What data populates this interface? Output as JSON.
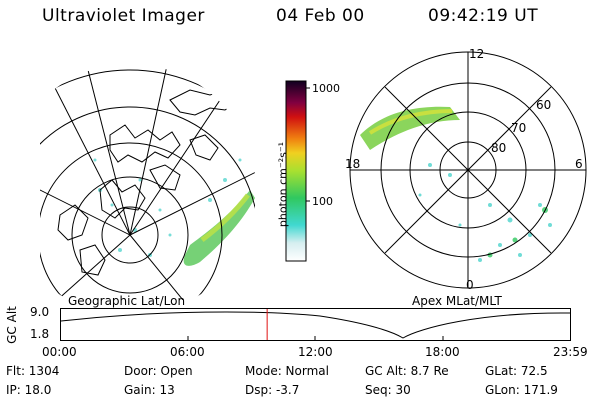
{
  "header": {
    "instrument": "Ultraviolet Imager",
    "date": "04 Feb 00",
    "time": "09:42:19 UT"
  },
  "left_map": {
    "label": "Geographic Lat/Lon"
  },
  "right_map": {
    "label": "Apex MLat/MLT",
    "mlt_labels": {
      "top": "12",
      "left": "18",
      "right": "6",
      "bottom": "0"
    },
    "lat_labels": [
      "60",
      "70",
      "80"
    ]
  },
  "colorbar": {
    "unit": "photon cm⁻²s⁻¹",
    "ticks": [
      "1000",
      "100"
    ]
  },
  "altitude_plot": {
    "ylabel": "GC Alt",
    "yticks": [
      "9.0",
      "1.8"
    ],
    "xticks": [
      "00:00",
      "06:00",
      "12:00",
      "18:00",
      "23:59"
    ],
    "marker_time_fraction": 0.405
  },
  "info": {
    "flt": "Flt:  1304",
    "ip": "IP:  18.0",
    "door": "Door:  Open",
    "gain": "Gain:  13",
    "mode": "Mode:  Normal",
    "dsp": "Dsp:      -3.7",
    "gcalt": "GC Alt:  8.7 Re",
    "seq": "Seq:  30",
    "glat": "GLat:   72.5",
    "glon": "GLon:  171.9"
  }
}
